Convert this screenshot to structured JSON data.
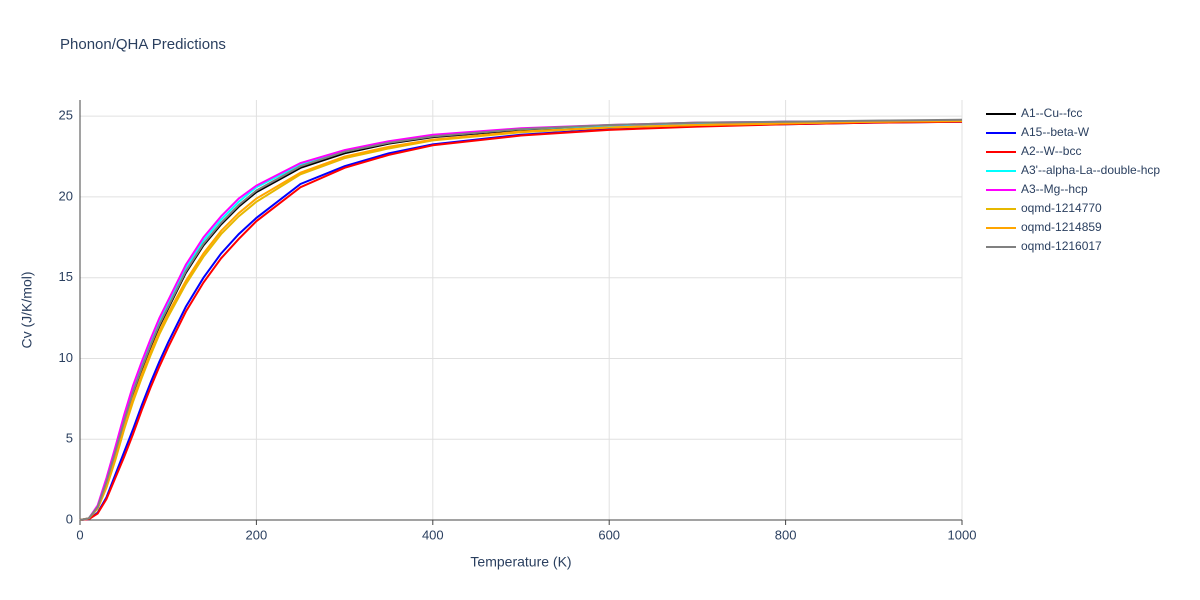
{
  "chart_data": {
    "type": "line",
    "title": "Phonon/QHA Predictions",
    "x_label": "Temperature (K)",
    "y_label": "Cv (J/K/mol)",
    "x": [
      0,
      10,
      20,
      30,
      40,
      50,
      60,
      70,
      80,
      90,
      100,
      120,
      140,
      160,
      180,
      200,
      250,
      300,
      350,
      400,
      500,
      600,
      700,
      800,
      900,
      1000
    ],
    "xlim": [
      0,
      1000
    ],
    "xticks": [
      0,
      200,
      400,
      600,
      800,
      1000
    ],
    "ylim": [
      0,
      26
    ],
    "yticks": [
      0,
      5,
      10,
      15,
      20,
      25
    ],
    "grid": true,
    "series": [
      {
        "name": "A1--Cu--fcc",
        "color": "#000000",
        "values": [
          0,
          0.1,
          0.8,
          2.3,
          4.1,
          6.0,
          7.8,
          9.3,
          10.7,
          12.0,
          13.1,
          15.3,
          17.0,
          18.3,
          19.4,
          20.3,
          21.8,
          22.7,
          23.3,
          23.7,
          24.15,
          24.4,
          24.55,
          24.65,
          24.7,
          24.75
        ]
      },
      {
        "name": "A15--beta-W",
        "color": "#0000ff",
        "values": [
          0,
          0.05,
          0.45,
          1.4,
          2.8,
          4.2,
          5.6,
          7.1,
          8.5,
          9.8,
          11.0,
          13.2,
          15.0,
          16.5,
          17.7,
          18.7,
          20.8,
          21.9,
          22.7,
          23.25,
          23.85,
          24.2,
          24.4,
          24.5,
          24.6,
          24.65
        ]
      },
      {
        "name": "A2--W--bcc",
        "color": "#ff0000",
        "values": [
          0,
          0.05,
          0.4,
          1.3,
          2.6,
          3.9,
          5.3,
          6.8,
          8.2,
          9.5,
          10.7,
          12.9,
          14.7,
          16.2,
          17.4,
          18.5,
          20.6,
          21.8,
          22.6,
          23.2,
          23.8,
          24.15,
          24.35,
          24.5,
          24.6,
          24.65
        ]
      },
      {
        "name": "A3'--alpha-La--double-hcp",
        "color": "#00ffff",
        "values": [
          0,
          0.1,
          0.85,
          2.45,
          4.3,
          6.3,
          8.1,
          9.6,
          11.0,
          12.3,
          13.4,
          15.6,
          17.3,
          18.6,
          19.7,
          20.6,
          22.0,
          22.8,
          23.4,
          23.8,
          24.2,
          24.4,
          24.55,
          24.65,
          24.7,
          24.75
        ]
      },
      {
        "name": "A3--Mg--hcp",
        "color": "#ff00ff",
        "values": [
          0,
          0.1,
          0.9,
          2.6,
          4.5,
          6.5,
          8.3,
          9.8,
          11.2,
          12.5,
          13.6,
          15.8,
          17.5,
          18.8,
          19.9,
          20.7,
          22.1,
          22.9,
          23.45,
          23.85,
          24.25,
          24.45,
          24.6,
          24.65,
          24.7,
          24.75
        ]
      },
      {
        "name": "oqmd-1214770",
        "color": "#e6b800",
        "values": [
          0,
          0.1,
          0.7,
          2.0,
          3.7,
          5.6,
          7.3,
          8.8,
          10.2,
          11.5,
          12.6,
          14.6,
          16.3,
          17.7,
          18.8,
          19.7,
          21.4,
          22.4,
          23.0,
          23.5,
          24.0,
          24.3,
          24.45,
          24.55,
          24.65,
          24.7
        ]
      },
      {
        "name": "oqmd-1214859",
        "color": "#ffa500",
        "values": [
          0,
          0.1,
          0.75,
          2.1,
          3.9,
          5.8,
          7.5,
          9.0,
          10.4,
          11.7,
          12.8,
          14.8,
          16.5,
          17.9,
          19.0,
          19.9,
          21.5,
          22.5,
          23.1,
          23.55,
          24.05,
          24.3,
          24.45,
          24.55,
          24.65,
          24.7
        ]
      },
      {
        "name": "oqmd-1216017",
        "color": "#808080",
        "values": [
          0,
          0.1,
          0.8,
          2.35,
          4.2,
          6.1,
          7.9,
          9.4,
          10.8,
          12.1,
          13.2,
          15.4,
          17.1,
          18.4,
          19.5,
          20.4,
          21.9,
          22.8,
          23.35,
          23.75,
          24.2,
          24.45,
          24.6,
          24.65,
          24.72,
          24.78
        ]
      }
    ]
  }
}
